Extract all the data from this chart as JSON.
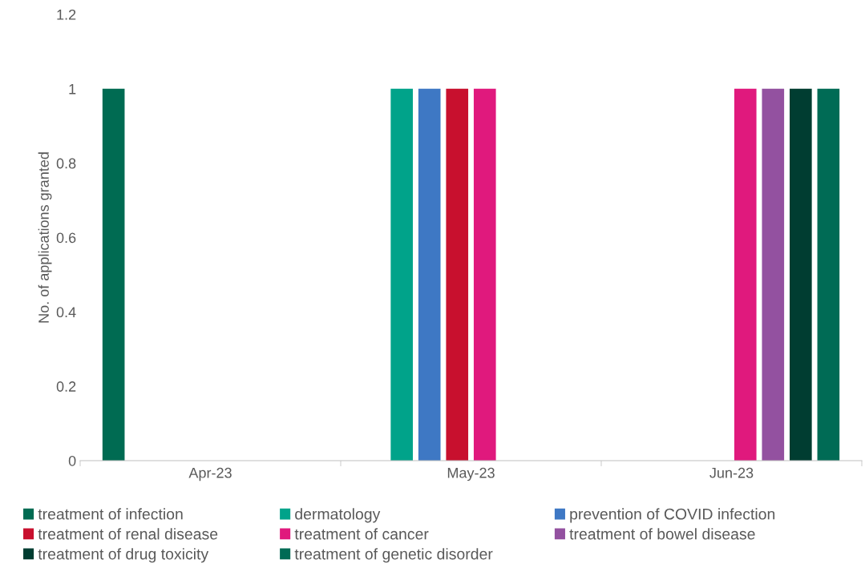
{
  "chart_data": {
    "type": "bar",
    "ylabel": "No. of applications granted",
    "categories": [
      "Apr-23",
      "May-23",
      "Jun-23"
    ],
    "series": [
      {
        "name": "treatment of infection",
        "color": "#006b52",
        "values": [
          1,
          null,
          null
        ]
      },
      {
        "name": "dermatology",
        "color": "#00a38a",
        "values": [
          null,
          1,
          null
        ]
      },
      {
        "name": "prevention of COVID infection",
        "color": "#3e78c4",
        "values": [
          null,
          1,
          null
        ]
      },
      {
        "name": "treatment of renal disease",
        "color": "#c8102e",
        "values": [
          null,
          1,
          null
        ]
      },
      {
        "name": "treatment of cancer",
        "color": "#e0197d",
        "values": [
          null,
          1,
          1
        ]
      },
      {
        "name": "treatment of bowel disease",
        "color": "#9351a0",
        "values": [
          null,
          null,
          1
        ]
      },
      {
        "name": "treatment of drug toxicity",
        "color": "#003d31",
        "values": [
          null,
          null,
          1
        ]
      },
      {
        "name": "treatment of genetic disorder",
        "color": "#006b55",
        "values": [
          null,
          null,
          1
        ]
      }
    ],
    "ylim": [
      0,
      1.2
    ],
    "yticks": [
      0,
      0.2,
      0.4,
      0.6,
      0.8,
      1,
      1.2
    ],
    "grid": false,
    "legend": "bottom"
  }
}
